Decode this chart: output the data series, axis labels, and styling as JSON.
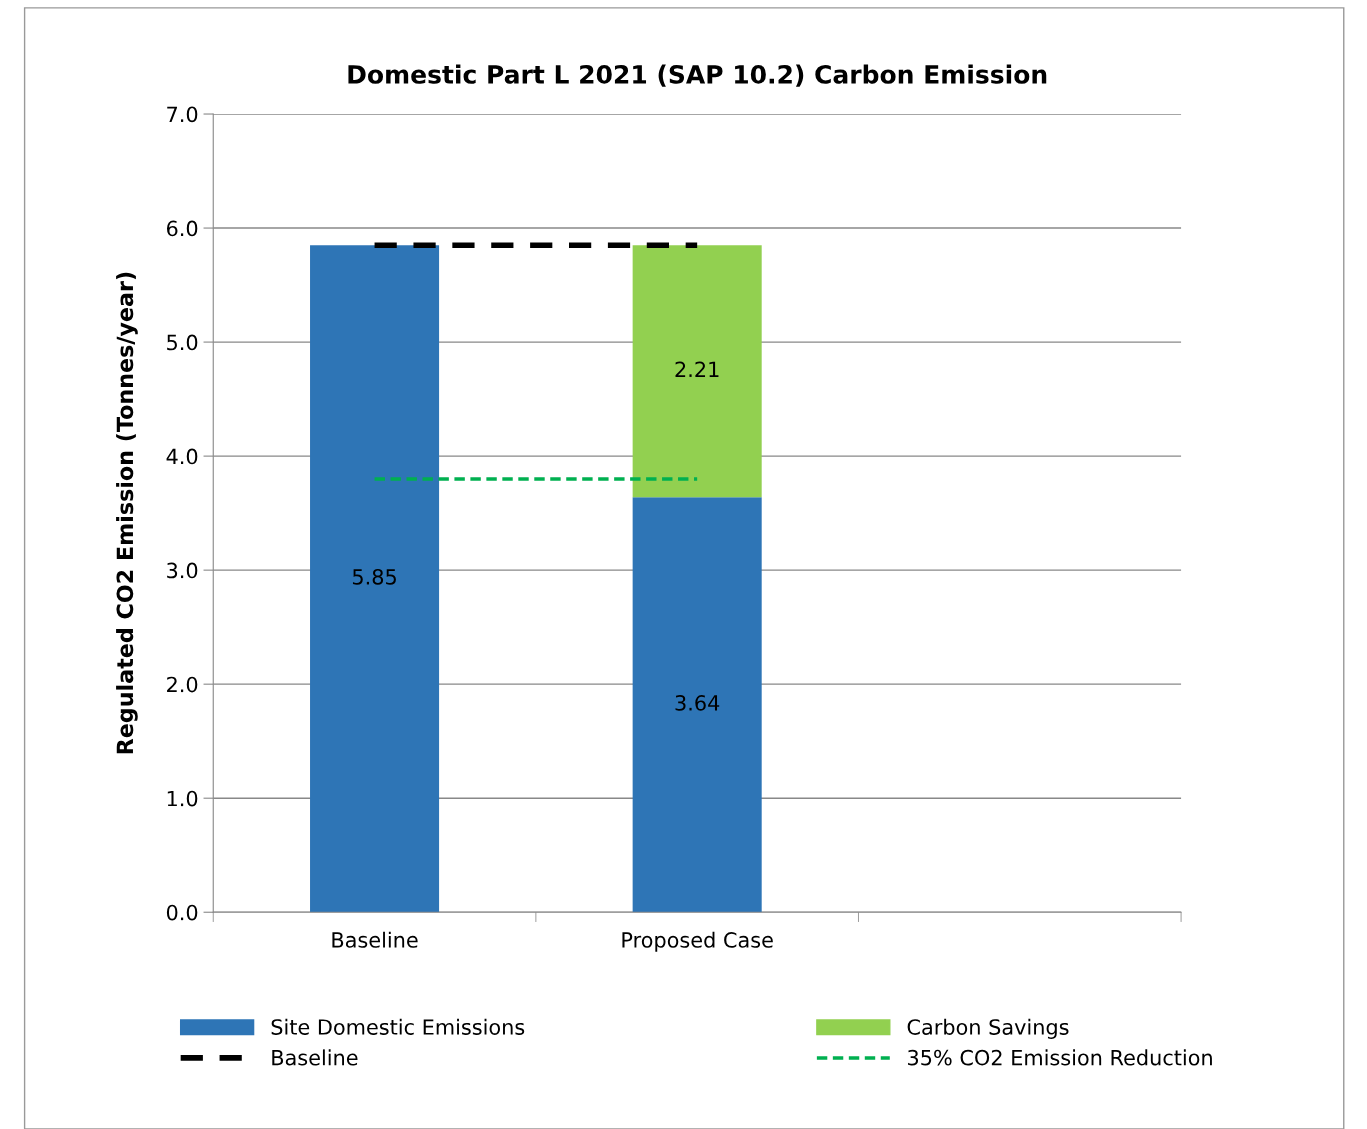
{
  "chart_data": {
    "type": "bar",
    "title": "Domestic Part L 2021 (SAP 10.2) Carbon Emission",
    "ylabel": "Regulated CO2 Emission (Tonnes/year)",
    "categories": [
      "Baseline",
      "Proposed Case",
      null
    ],
    "stacked": true,
    "series": [
      {
        "name": "Site Domestic Emissions",
        "color": "#2e75b6",
        "values": [
          5.85,
          3.64,
          null
        ],
        "value_labels": [
          "5.85",
          "3.64",
          null
        ]
      },
      {
        "name": "Carbon Savings",
        "color": "#92d050",
        "values": [
          null,
          2.21,
          null
        ],
        "value_labels": [
          null,
          "2.21",
          null
        ]
      },
      {
        "name": "Baseline",
        "type": "line",
        "color": "#000000",
        "line_style": "dashed",
        "values": [
          5.85,
          5.85,
          null
        ]
      },
      {
        "name": "35% CO2 Emission Reduction",
        "type": "line",
        "color": "#00b050",
        "line_style": "dotted",
        "values": [
          3.8,
          3.8,
          null
        ]
      }
    ],
    "ylim": [
      0,
      7
    ],
    "yticks": [
      {
        "value": 0,
        "label": "0.0"
      },
      {
        "value": 1,
        "label": "1.0"
      },
      {
        "value": 2,
        "label": "2.0"
      },
      {
        "value": 3,
        "label": "3.0"
      },
      {
        "value": 4,
        "label": "4.0"
      },
      {
        "value": 5,
        "label": "5.0"
      },
      {
        "value": 6,
        "label": "6.0"
      },
      {
        "value": 7,
        "label": "7.0"
      }
    ],
    "grid": "y",
    "legend": "bottom"
  }
}
